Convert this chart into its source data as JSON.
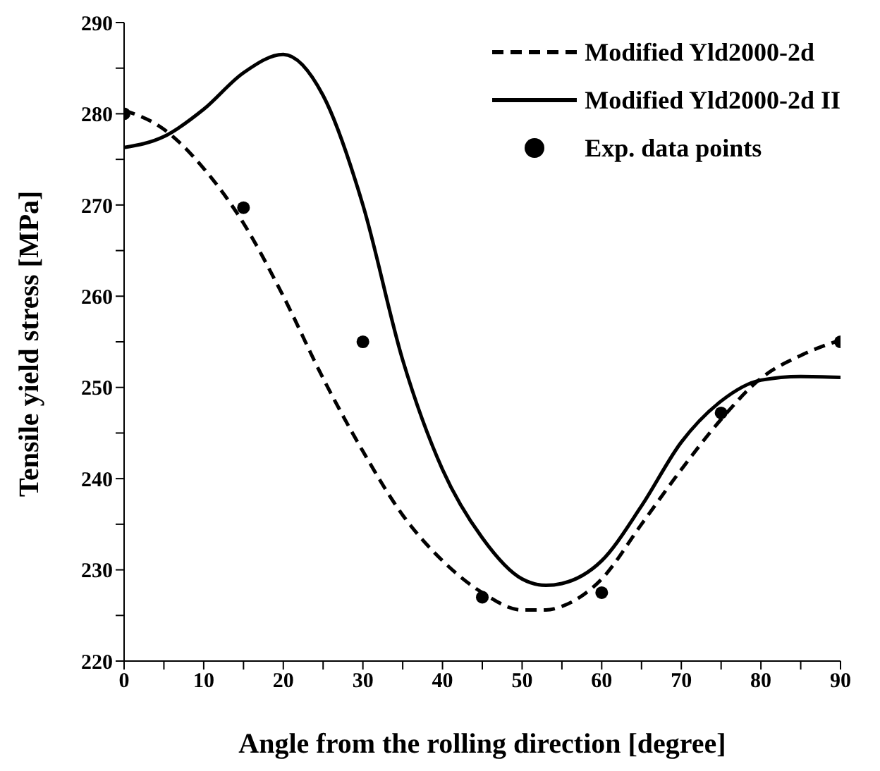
{
  "chart_data": {
    "type": "line",
    "xlabel": "Angle from the rolling direction [degree]",
    "ylabel": "Tensile yield stress [MPa]",
    "xlim": [
      0,
      90
    ],
    "xticks": [
      0,
      {
        "value": 5,
        "label": null
      },
      10,
      {
        "value": 15,
        "label": null
      },
      20,
      {
        "value": 25,
        "label": null
      },
      30,
      {
        "value": 35,
        "label": null
      },
      40,
      {
        "value": 45,
        "label": null
      },
      50,
      {
        "value": 55,
        "label": null
      },
      60,
      {
        "value": 65,
        "label": null
      },
      70,
      {
        "value": 75,
        "label": null
      },
      80,
      {
        "value": 85,
        "label": null
      },
      90
    ],
    "ylim": [
      220,
      290
    ],
    "yticks": [
      220,
      {
        "value": 225,
        "label": null
      },
      230,
      {
        "value": 235,
        "label": null
      },
      240,
      {
        "value": 245,
        "label": null
      },
      250,
      {
        "value": 255,
        "label": null
      },
      260,
      {
        "value": 265,
        "label": null
      },
      270,
      {
        "value": 275,
        "label": null
      },
      280,
      {
        "value": 285,
        "label": null
      },
      290
    ],
    "grid": false,
    "legend": "top right",
    "series": [
      {
        "name": "Modified Yld2000-2d",
        "line_style": "dashed",
        "marker": "none",
        "color": "#000000",
        "x": [
          0,
          5,
          10,
          15,
          20,
          25,
          30,
          35,
          40,
          45,
          50,
          53,
          55,
          60,
          65,
          70,
          75,
          80,
          85,
          90
        ],
        "values": [
          280.4,
          278.3,
          274,
          268,
          260,
          251,
          243,
          236,
          231,
          227.5,
          225.6,
          225.6,
          226,
          229,
          235,
          241,
          246.5,
          251,
          253.5,
          255.2
        ]
      },
      {
        "name": "Modified Yld2000-2d II",
        "line_style": "solid",
        "marker": "none",
        "color": "#000000",
        "x": [
          0,
          5,
          10,
          15,
          20,
          25,
          30,
          35,
          40,
          45,
          50,
          53,
          55,
          60,
          65,
          70,
          75,
          80,
          85,
          90
        ],
        "values": [
          276.3,
          277.5,
          280.5,
          284.5,
          286.5,
          282,
          270,
          253,
          241,
          233.5,
          229,
          228.3,
          228.5,
          231,
          237,
          244,
          248.5,
          250.8,
          251.2,
          251.1
        ]
      },
      {
        "name": "Exp. data points",
        "type": "scatter",
        "marker": "circle",
        "color": "#000000",
        "x": [
          0,
          15,
          30,
          45,
          60,
          75,
          90
        ],
        "values": [
          280,
          269.7,
          255,
          227,
          227.5,
          247.2,
          255
        ]
      }
    ]
  }
}
